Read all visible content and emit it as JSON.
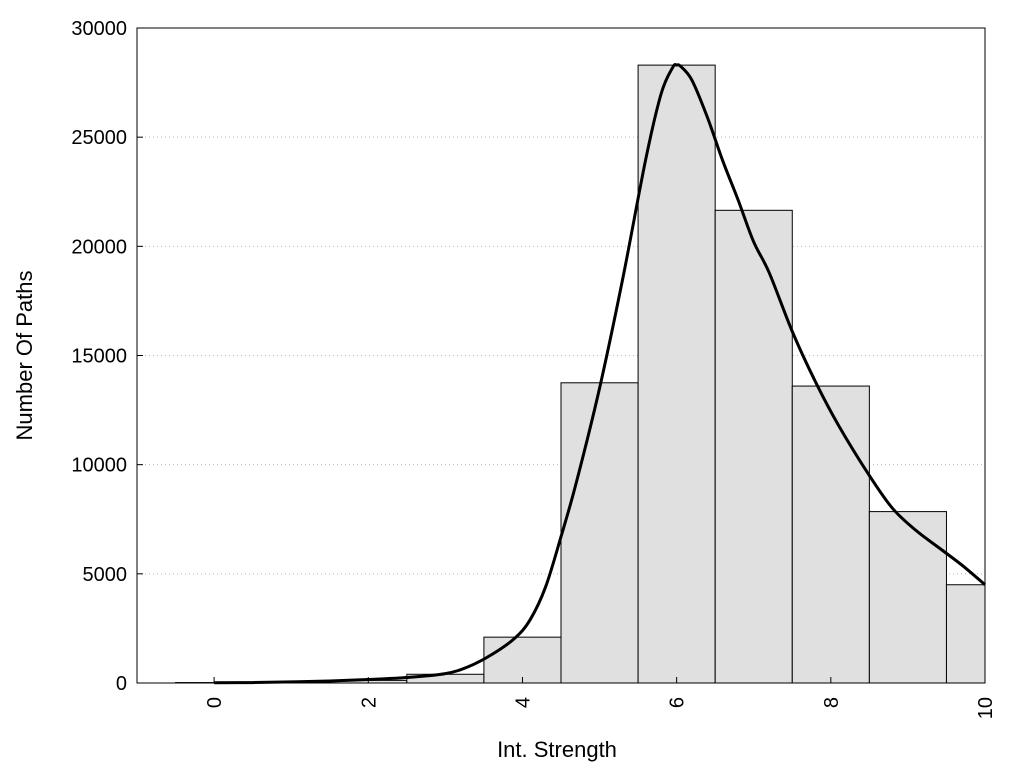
{
  "chart_data": {
    "type": "bar",
    "title": "",
    "xlabel": "Int. Strength",
    "ylabel": "Number Of Paths",
    "xlim": [
      -1,
      10
    ],
    "ylim": [
      0,
      30000
    ],
    "xticks": [
      0,
      2,
      4,
      6,
      8,
      10
    ],
    "yticks": [
      0,
      5000,
      10000,
      15000,
      20000,
      25000,
      30000
    ],
    "grid": "horizontal dotted",
    "bar_color": "#e0e0e0",
    "edge_color": "#000000",
    "bars": {
      "x": [
        0,
        1,
        2,
        3,
        4,
        5,
        6,
        7,
        8,
        9,
        10
      ],
      "values": [
        20,
        40,
        120,
        400,
        2100,
        13750,
        28300,
        21650,
        13600,
        7850,
        4500
      ]
    },
    "curve": {
      "x": [
        0,
        0.5,
        1,
        1.5,
        2,
        2.5,
        3,
        3.3,
        3.6,
        3.9,
        4.1,
        4.3,
        4.5,
        4.7,
        5,
        5.3,
        5.6,
        5.8,
        5.95,
        6,
        6.05,
        6.2,
        6.4,
        6.6,
        6.8,
        7,
        7.2,
        7.5,
        7.8,
        8.1,
        8.5,
        8.8,
        9.1,
        9.4,
        9.7,
        10
      ],
      "y": [
        10,
        20,
        50,
        90,
        160,
        250,
        430,
        750,
        1300,
        2050,
        2900,
        4400,
        6700,
        9200,
        13500,
        18500,
        24000,
        27000,
        28200,
        28300,
        28250,
        27600,
        25900,
        23900,
        22100,
        20200,
        18800,
        16100,
        13800,
        11800,
        9500,
        8000,
        7000,
        6200,
        5400,
        4500
      ],
      "color": "#000000"
    }
  }
}
